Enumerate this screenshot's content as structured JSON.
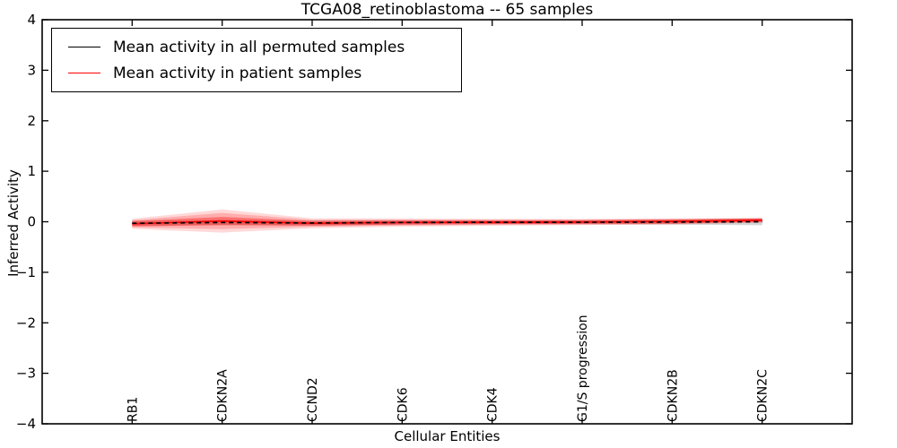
{
  "chart_data": {
    "type": "line",
    "title": "TCGA08_retinoblastoma -- 65 samples",
    "xlabel": "Cellular Entities",
    "ylabel": "Inferred Activity",
    "ylim": [
      -4,
      4
    ],
    "yticks": [
      4,
      3,
      2,
      1,
      0,
      -1,
      -2,
      -3,
      -4
    ],
    "grid": false,
    "legend_position": "upper-left",
    "categories": [
      "RB1",
      "CDKN2A",
      "CCND2",
      "CDK6",
      "CDK4",
      "G1/S progression",
      "CDKN2B",
      "CDKN2C"
    ],
    "series": [
      {
        "name": "Mean activity in all permuted samples",
        "color": "#000000",
        "line_style": "dashed",
        "values": [
          -0.03,
          -0.015,
          -0.025,
          -0.015,
          -0.01,
          -0.01,
          -0.005,
          0.0
        ]
      },
      {
        "name": "Mean activity in patient samples",
        "color": "#ff0000",
        "line_style": "solid",
        "values": [
          -0.04,
          0.015,
          -0.03,
          -0.015,
          -0.01,
          -0.005,
          0.005,
          0.03
        ]
      }
    ],
    "bands": [
      {
        "name": "permuted-sample-range",
        "center_series": 0,
        "color": "#999999",
        "opacity": 0.4,
        "half_widths": [
          0.05,
          0.05,
          0.05,
          0.04,
          0.04,
          0.04,
          0.05,
          0.07
        ]
      },
      {
        "name": "patient-range-outer",
        "center_series": 1,
        "color": "#ff0000",
        "opacity": 0.15,
        "half_widths": [
          0.1,
          0.23,
          0.1,
          0.08,
          0.07,
          0.06,
          0.06,
          0.05
        ]
      },
      {
        "name": "patient-range-mid",
        "center_series": 1,
        "color": "#ff0000",
        "opacity": 0.2,
        "half_widths": [
          0.07,
          0.16,
          0.07,
          0.06,
          0.05,
          0.05,
          0.05,
          0.04
        ]
      },
      {
        "name": "patient-range-inner",
        "center_series": 1,
        "color": "#ff0000",
        "opacity": 0.35,
        "half_widths": [
          0.05,
          0.08,
          0.045,
          0.04,
          0.035,
          0.035,
          0.04,
          0.03
        ]
      }
    ]
  }
}
